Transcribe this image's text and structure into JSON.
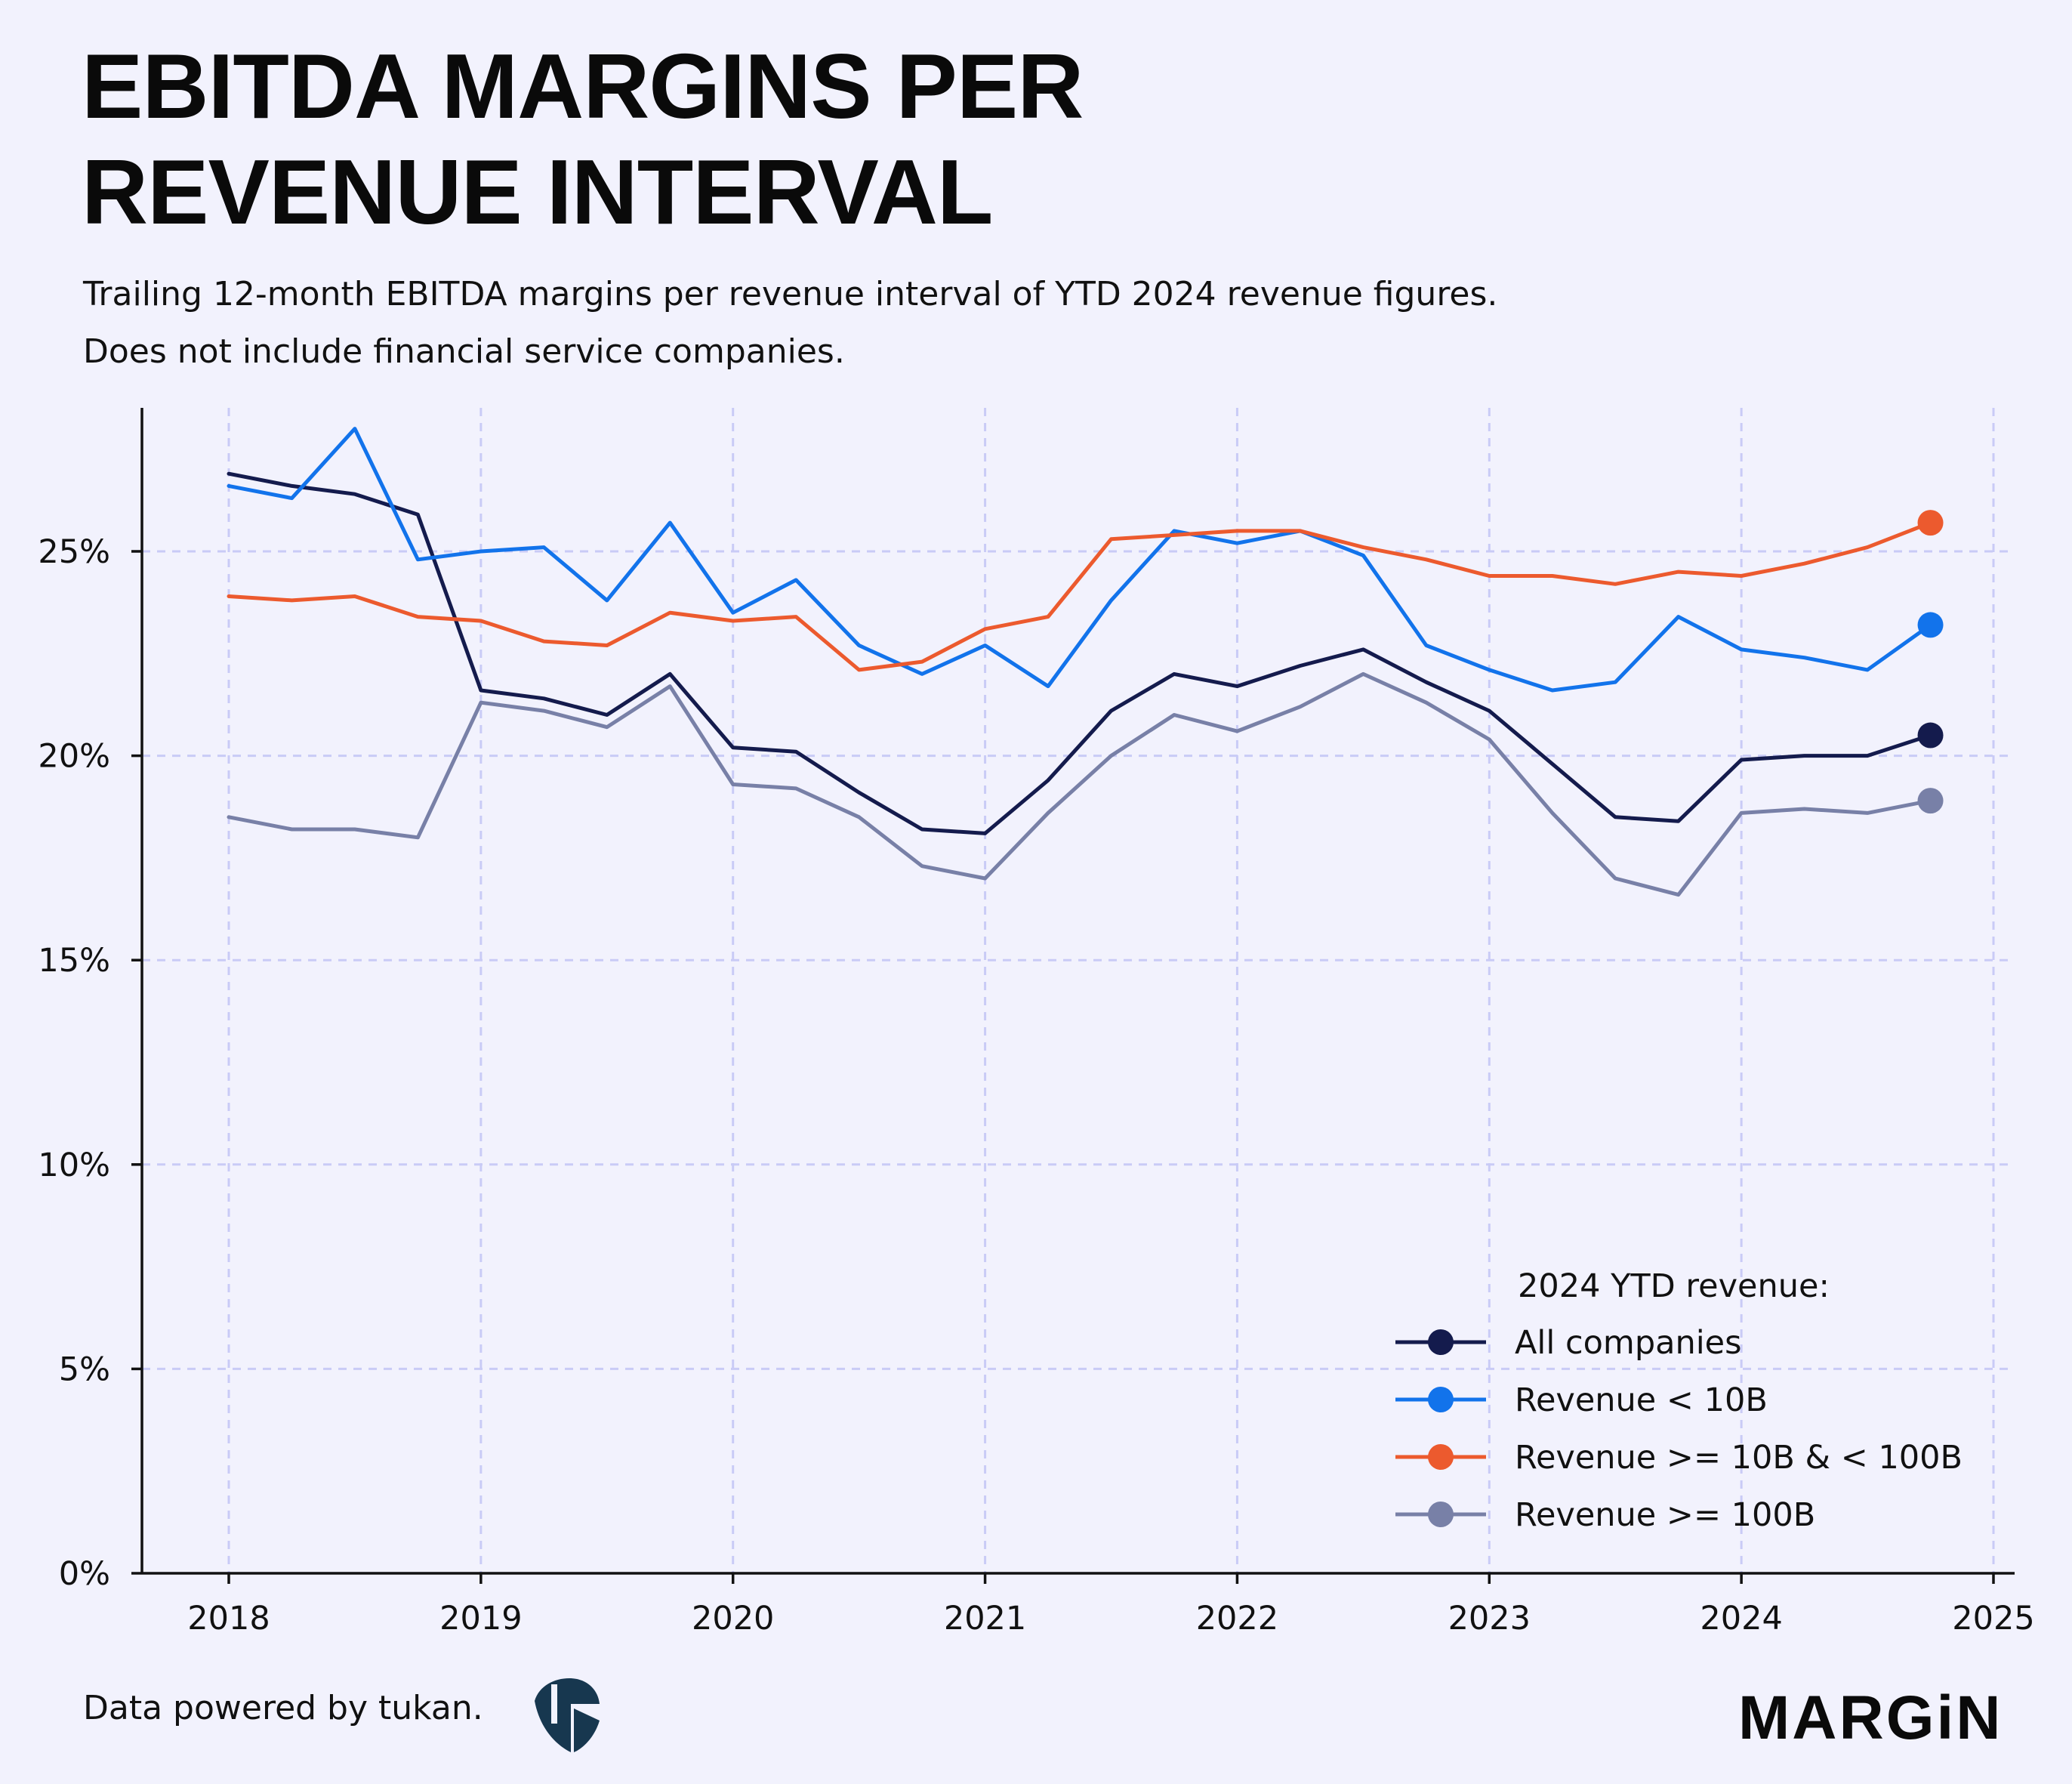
{
  "header": {
    "title_line1": "EBITDA MARGINS PER",
    "title_line2": "REVENUE INTERVAL",
    "subtitle_line1": "Trailing 12-month EBITDA margins per revenue interval of YTD 2024 revenue figures.",
    "subtitle_line2": "Does not include financial service companies."
  },
  "footer": {
    "note": "Data powered by tukan.",
    "brand": "MARGiN"
  },
  "chart_data": {
    "type": "line",
    "title": "EBITDA MARGINS PER REVENUE INTERVAL",
    "xlabel": "",
    "ylabel": "",
    "xlim": [
      2018,
      2025
    ],
    "ylim": [
      0,
      28
    ],
    "x_ticks": [
      2018,
      2019,
      2020,
      2021,
      2022,
      2023,
      2024,
      2025
    ],
    "x_tick_labels": [
      "2018",
      "2019",
      "2020",
      "2021",
      "2022",
      "2023",
      "2024",
      "2025"
    ],
    "y_ticks": [
      0,
      5,
      10,
      15,
      20,
      25
    ],
    "y_tick_labels": [
      "0%",
      "5%",
      "10%",
      "15%",
      "20%",
      "25%"
    ],
    "grid": true,
    "legend_title": "2024 YTD revenue:",
    "legend_position": "bottom-right",
    "x": [
      2018.0,
      2018.25,
      2018.5,
      2018.75,
      2019.0,
      2019.25,
      2019.5,
      2019.75,
      2020.0,
      2020.25,
      2020.5,
      2020.75,
      2021.0,
      2021.25,
      2021.5,
      2021.75,
      2022.0,
      2022.25,
      2022.5,
      2022.75,
      2023.0,
      2023.25,
      2023.5,
      2023.75,
      2024.0,
      2024.25,
      2024.5,
      2024.75
    ],
    "series": [
      {
        "name": "All companies",
        "color": "#141b4d",
        "values": [
          26.9,
          26.6,
          26.4,
          25.9,
          21.6,
          21.4,
          21.0,
          22.0,
          20.2,
          20.1,
          19.1,
          18.2,
          18.1,
          19.4,
          21.1,
          22.0,
          21.7,
          22.2,
          22.6,
          21.8,
          21.1,
          19.8,
          18.5,
          18.4,
          19.9,
          20.0,
          20.0,
          20.5
        ]
      },
      {
        "name": "Revenue < 10B",
        "color": "#1273eb",
        "values": [
          26.6,
          26.3,
          28.0,
          24.8,
          25.0,
          25.1,
          23.8,
          25.7,
          23.5,
          24.3,
          22.7,
          22.0,
          22.7,
          21.7,
          23.8,
          25.5,
          25.2,
          25.5,
          24.9,
          22.7,
          22.1,
          21.6,
          21.8,
          23.4,
          22.6,
          22.4,
          22.1,
          23.2
        ]
      },
      {
        "name": "Revenue >= 10B & < 100B",
        "color": "#ec5a2e",
        "values": [
          23.9,
          23.8,
          23.9,
          23.4,
          23.3,
          22.8,
          22.7,
          23.5,
          23.3,
          23.4,
          22.1,
          22.3,
          23.1,
          23.4,
          25.3,
          25.4,
          25.5,
          25.5,
          25.1,
          24.8,
          24.4,
          24.4,
          24.2,
          24.5,
          24.4,
          24.7,
          25.1,
          25.7
        ]
      },
      {
        "name": "Revenue >= 100B",
        "color": "#7880a7",
        "values": [
          18.5,
          18.2,
          18.2,
          18.0,
          21.3,
          21.1,
          20.7,
          21.7,
          19.3,
          19.2,
          18.5,
          17.3,
          17.0,
          18.6,
          20.0,
          21.0,
          20.6,
          21.2,
          22.0,
          21.3,
          20.4,
          18.6,
          17.0,
          16.6,
          18.6,
          18.7,
          18.6,
          18.9
        ]
      }
    ]
  }
}
